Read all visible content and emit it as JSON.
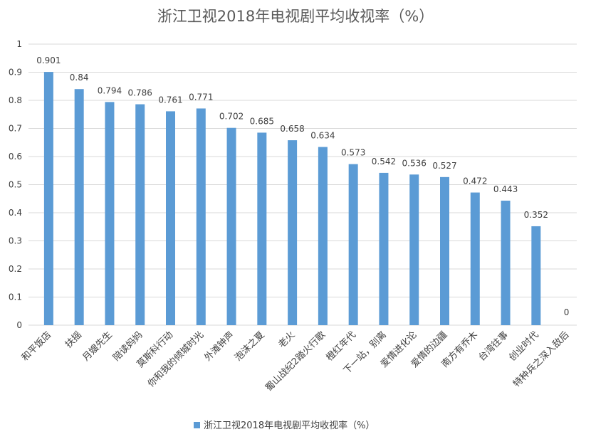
{
  "chart_data": {
    "type": "bar",
    "title": "浙江卫视2018年电视剧平均收视率（%）",
    "xlabel": "",
    "ylabel": "",
    "ylim": [
      0,
      1
    ],
    "yticks": [
      "0",
      "0.1",
      "0.2",
      "0.3",
      "0.4",
      "0.5",
      "0.6",
      "0.7",
      "0.8",
      "0.9",
      "1"
    ],
    "grid": true,
    "legend_position": "bottom",
    "categories": [
      "和平饭店",
      "扶摇",
      "月嫂先生",
      "陪读妈妈",
      "莫斯科行动",
      "你和我的倾城时光",
      "外滩钟声",
      "泡沫之夏",
      "老火",
      "蜀山战纪2踏火行歌",
      "橙红年代",
      "下一站，别离",
      "爱情进化论",
      "爱情的边疆",
      "南方有乔木",
      "台湾往事",
      "创业时代",
      "特种兵之深入敌后"
    ],
    "series": [
      {
        "name": "浙江卫视2018年电视剧平均收视率（%）",
        "color": "#5b9bd5",
        "values": [
          0.901,
          0.84,
          0.794,
          0.786,
          0.761,
          0.771,
          0.702,
          0.685,
          0.658,
          0.634,
          0.573,
          0.542,
          0.536,
          0.527,
          0.472,
          0.443,
          0.352,
          0
        ],
        "labels": [
          "0.901",
          "0.84",
          "0.794",
          "0.786",
          "0.761",
          "0.771",
          "0.702",
          "0.685",
          "0.658",
          "0.634",
          "0.573",
          "0.542",
          "0.536",
          "0.527",
          "0.472",
          "0.443",
          "0.352",
          "0"
        ]
      }
    ]
  }
}
